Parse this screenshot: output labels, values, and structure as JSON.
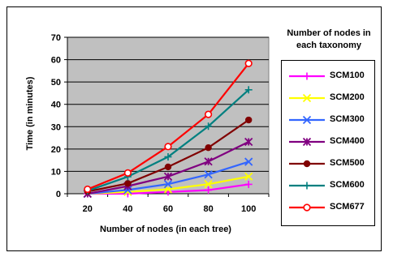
{
  "chart_data": {
    "type": "line",
    "title": "",
    "xlabel": "Number of nodes (in each tree)",
    "ylabel": "Time (in minutes)",
    "x": [
      20,
      40,
      60,
      80,
      100
    ],
    "ylim": [
      0,
      70
    ],
    "yticks": [
      0,
      10,
      20,
      30,
      40,
      50,
      60,
      70
    ],
    "grid": "horizontal",
    "plot_background": "#c0c0c0",
    "legend_title": "Number of nodes in each taxonomy",
    "legend_position": "right",
    "series": [
      {
        "name": "SCM100",
        "color": "#ff00ff",
        "marker": "plus",
        "values": [
          0,
          0,
          0.8,
          1.6,
          4.2
        ]
      },
      {
        "name": "SCM200",
        "color": "#ffff00",
        "marker": "x",
        "values": [
          0,
          0.8,
          2.0,
          4.3,
          7.7
        ]
      },
      {
        "name": "SCM300",
        "color": "#3366ff",
        "marker": "x",
        "values": [
          0,
          1.7,
          4.3,
          8.6,
          14.3
        ]
      },
      {
        "name": "SCM400",
        "color": "#800080",
        "marker": "star",
        "values": [
          0,
          3.4,
          7.7,
          14.4,
          23.2
        ]
      },
      {
        "name": "SCM500",
        "color": "#800000",
        "marker": "dot",
        "values": [
          1.0,
          4.6,
          12.0,
          20.6,
          33.0
        ]
      },
      {
        "name": "SCM600",
        "color": "#008080",
        "marker": "plus",
        "values": [
          1.3,
          7.6,
          16.5,
          30.2,
          46.5
        ]
      },
      {
        "name": "SCM677",
        "color": "#ff0000",
        "marker": "circle",
        "values": [
          2.0,
          9.3,
          21.1,
          35.5,
          58.3
        ]
      }
    ]
  }
}
